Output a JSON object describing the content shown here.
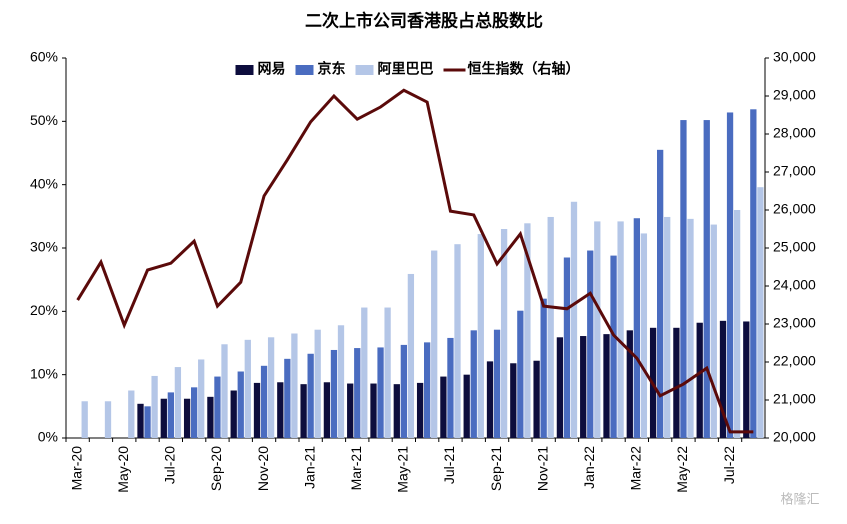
{
  "chart_data": {
    "type": "bar-line",
    "title": "二次上市公司香港股占总股数比",
    "categories": [
      "Mar-20",
      null,
      "May-20",
      null,
      "Jul-20",
      null,
      "Sep-20",
      null,
      "Nov-20",
      null,
      "Jan-21",
      null,
      "Mar-21",
      null,
      "May-21",
      null,
      "Jul-21",
      null,
      "Sep-21",
      null,
      "Nov-21",
      null,
      "Jan-22",
      null,
      "Mar-22",
      null,
      "May-22",
      null,
      "Jul-22",
      null
    ],
    "series": [
      {
        "name": "网易",
        "type": "bar",
        "color": "#0d0d3d",
        "values": [
          null,
          null,
          null,
          5.4,
          6.2,
          6.2,
          6.5,
          7.5,
          8.7,
          8.8,
          8.5,
          8.8,
          8.6,
          8.6,
          8.5,
          8.7,
          9.7,
          10,
          12.1,
          11.8,
          12.2,
          15.9,
          16.1,
          16.4,
          17,
          17.4,
          17.4,
          18.2,
          18.5,
          18.4
        ]
      },
      {
        "name": "京东",
        "type": "bar",
        "color": "#4a6cc0",
        "values": [
          null,
          null,
          null,
          5,
          7.2,
          8,
          9.7,
          10.5,
          11.4,
          12.5,
          13.3,
          13.9,
          14.2,
          14.3,
          14.7,
          15.1,
          15.8,
          17,
          17.1,
          20.1,
          22,
          28.5,
          29.6,
          28.8,
          34.7,
          45.5,
          50.2,
          50.2,
          51.4,
          51.9
        ]
      },
      {
        "name": "阿里巴巴",
        "type": "bar",
        "color": "#b4c6e7",
        "values": [
          5.8,
          5.8,
          7.5,
          9.8,
          11.2,
          12.4,
          14.8,
          15.5,
          15.9,
          16.5,
          17.1,
          17.8,
          20.6,
          20.6,
          25.9,
          29.6,
          30.6,
          32.2,
          33,
          33.9,
          34.9,
          37.3,
          34.2,
          34.2,
          32.3,
          34.9,
          34.6,
          33.7,
          36,
          39.6
        ]
      },
      {
        "name": "恒生指数（右轴）",
        "type": "line",
        "axis": "y2",
        "color": "#5b0a0a",
        "values": [
          23630,
          24630,
          22970,
          24420,
          24600,
          25180,
          23470,
          24100,
          26370,
          27320,
          28320,
          29000,
          28390,
          28710,
          29150,
          28840,
          25970,
          25870,
          24580,
          25370,
          23470,
          23400,
          23810,
          22710,
          22100,
          21110,
          21420,
          21840,
          20160,
          20160
        ]
      }
    ],
    "ylim": [
      0,
      60
    ],
    "yticks": [
      {
        "value": 0,
        "label": "0%"
      },
      {
        "value": 10,
        "label": "10%"
      },
      {
        "value": 20,
        "label": "20%"
      },
      {
        "value": 30,
        "label": "30%"
      },
      {
        "value": 40,
        "label": "40%"
      },
      {
        "value": 50,
        "label": "50%"
      },
      {
        "value": 60,
        "label": "60%"
      }
    ],
    "y2lim": [
      20000,
      30000
    ],
    "y2ticks": [
      {
        "value": 20000,
        "label": "20,000"
      },
      {
        "value": 21000,
        "label": "21,000"
      },
      {
        "value": 22000,
        "label": "22,000"
      },
      {
        "value": 23000,
        "label": "23,000"
      },
      {
        "value": 24000,
        "label": "24,000"
      },
      {
        "value": 25000,
        "label": "25,000"
      },
      {
        "value": 26000,
        "label": "26,000"
      },
      {
        "value": 27000,
        "label": "27,000"
      },
      {
        "value": 28000,
        "label": "28,000"
      },
      {
        "value": 29000,
        "label": "29,000"
      },
      {
        "value": 30000,
        "label": "30,000"
      }
    ],
    "legend": "top",
    "watermark": "格隆汇"
  }
}
